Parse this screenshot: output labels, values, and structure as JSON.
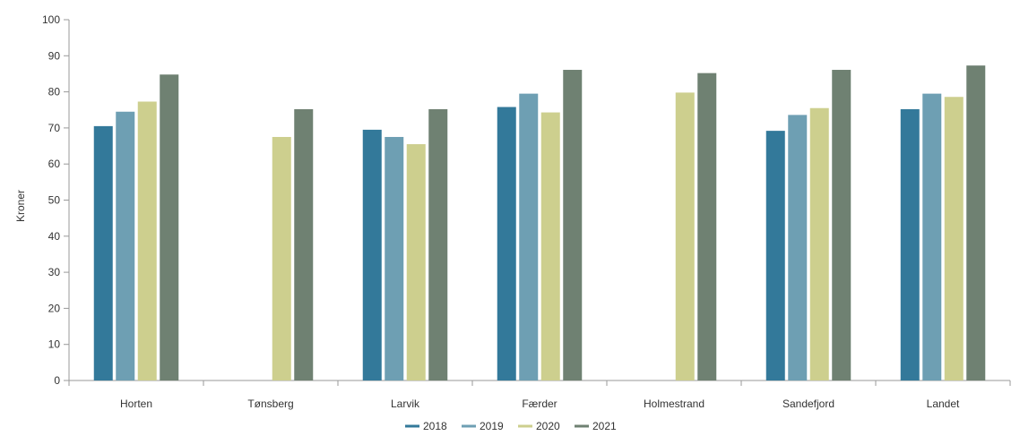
{
  "chart_data": {
    "type": "bar",
    "title": "",
    "xlabel": "",
    "ylabel": "Kroner",
    "ylim": [
      0,
      100
    ],
    "yticks": [
      0,
      10,
      20,
      30,
      40,
      50,
      60,
      70,
      80,
      90,
      100
    ],
    "categories": [
      "Horten",
      "Tønsberg",
      "Larvik",
      "Færder",
      "Holmestrand",
      "Sandefjord",
      "Landet"
    ],
    "series": [
      {
        "name": "2018",
        "color": "#33799a",
        "values": [
          70.5,
          null,
          69.5,
          75.8,
          null,
          69.2,
          75.2
        ]
      },
      {
        "name": "2019",
        "color": "#6e9fb3",
        "values": [
          74.5,
          null,
          67.5,
          79.5,
          null,
          73.6,
          79.5
        ]
      },
      {
        "name": "2020",
        "color": "#cdcf8e",
        "values": [
          77.3,
          67.5,
          65.5,
          74.3,
          79.8,
          75.5,
          78.6
        ]
      },
      {
        "name": "2021",
        "color": "#6f8172",
        "values": [
          84.8,
          75.2,
          75.2,
          86.1,
          85.2,
          86.1,
          87.3
        ]
      }
    ],
    "grid": false,
    "legend_position": "bottom-center"
  }
}
